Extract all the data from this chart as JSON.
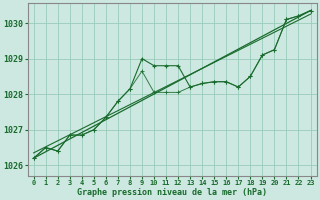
{
  "title": "Graphe pression niveau de la mer (hPa)",
  "background_color": "#cce8e0",
  "grid_color": "#99ccbb",
  "line_color": "#1a6b2e",
  "xlim": [
    -0.5,
    23.5
  ],
  "ylim": [
    1025.7,
    1030.55
  ],
  "yticks": [
    1026,
    1027,
    1028,
    1029,
    1030
  ],
  "xticks": [
    0,
    1,
    2,
    3,
    4,
    5,
    6,
    7,
    8,
    9,
    10,
    11,
    12,
    13,
    14,
    15,
    16,
    17,
    18,
    19,
    20,
    21,
    22,
    23
  ],
  "series1_x": [
    0,
    1,
    2,
    3,
    4,
    5,
    6,
    7,
    8,
    9,
    10,
    11,
    12,
    13,
    14,
    15,
    16,
    17,
    18,
    19,
    20,
    21,
    22,
    23
  ],
  "series1_y": [
    1026.2,
    1026.5,
    1026.4,
    1026.85,
    1026.85,
    1027.0,
    1027.35,
    1027.8,
    1028.15,
    1029.0,
    1028.8,
    1028.8,
    1028.8,
    1028.2,
    1028.3,
    1028.35,
    1028.35,
    1028.2,
    1028.5,
    1029.1,
    1029.25,
    1030.1,
    1030.2,
    1030.35
  ],
  "series2_x": [
    0,
    1,
    2,
    3,
    4,
    5,
    6,
    7,
    8,
    9,
    10,
    11,
    12,
    13,
    14,
    15,
    16,
    17,
    18,
    19,
    20,
    21,
    22,
    23
  ],
  "series2_y": [
    1026.2,
    1026.5,
    1026.4,
    1026.85,
    1026.85,
    1027.0,
    1027.35,
    1027.8,
    1028.15,
    1028.65,
    1028.05,
    1028.05,
    1028.05,
    1028.2,
    1028.3,
    1028.35,
    1028.35,
    1028.2,
    1028.5,
    1029.1,
    1029.25,
    1030.1,
    1030.2,
    1030.35
  ],
  "trend1_x": [
    0,
    23
  ],
  "trend1_y": [
    1026.2,
    1030.35
  ],
  "trend2_x": [
    0,
    23
  ],
  "trend2_y": [
    1026.35,
    1030.25
  ],
  "ylabel_fontsize": 6,
  "xlabel_fontsize": 6,
  "tick_fontsize": 5
}
